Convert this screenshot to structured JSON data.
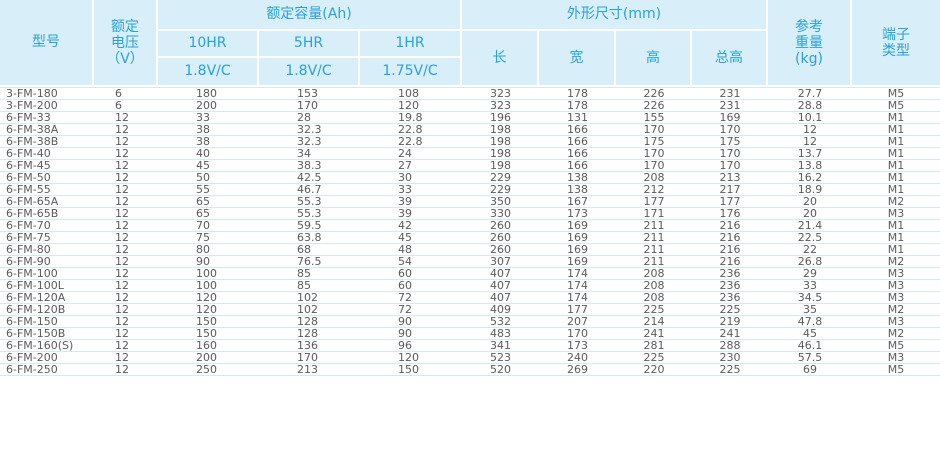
{
  "header": {
    "model": "型号",
    "voltage_l1": "额定",
    "voltage_l2": "电压",
    "voltage_l3": "（V）",
    "capacity": "额定容量(Ah)",
    "rate_10hr": "10HR",
    "rate_5hr": "5HR",
    "rate_1hr": "1HR",
    "v_10hr": "1.8V/C",
    "v_5hr": "1.8V/C",
    "v_1hr": "1.75V/C",
    "dimensions": "外形尺寸(mm)",
    "length": "长",
    "width": "宽",
    "height": "高",
    "total_height": "总高",
    "weight_l1": "参考",
    "weight_l2": "重量",
    "weight_l3": "(kg)",
    "terminal_l1": "端子",
    "terminal_l2": "类型"
  },
  "rows": [
    [
      "3-FM-180",
      "6",
      "180",
      "153",
      "108",
      "323",
      "178",
      "226",
      "231",
      "27.7",
      "M5"
    ],
    [
      "3-FM-200",
      "6",
      "200",
      "170",
      "120",
      "323",
      "178",
      "226",
      "231",
      "28.8",
      "M5"
    ],
    [
      "6-FM-33",
      "12",
      "33",
      "28",
      "19.8",
      "196",
      "131",
      "155",
      "169",
      "10.1",
      "M1"
    ],
    [
      "6-FM-38A",
      "12",
      "38",
      "32.3",
      "22.8",
      "198",
      "166",
      "170",
      "170",
      "12",
      "M1"
    ],
    [
      "6-FM-38B",
      "12",
      "38",
      "32.3",
      "22.8",
      "198",
      "166",
      "175",
      "175",
      "12",
      "M1"
    ],
    [
      "6-FM-40",
      "12",
      "40",
      "34",
      "24",
      "198",
      "166",
      "170",
      "170",
      "13.7",
      "M1"
    ],
    [
      "6-FM-45",
      "12",
      "45",
      "38.3",
      "27",
      "198",
      "166",
      "170",
      "170",
      "13.8",
      "M1"
    ],
    [
      "6-FM-50",
      "12",
      "50",
      "42.5",
      "30",
      "229",
      "138",
      "208",
      "213",
      "16.2",
      "M1"
    ],
    [
      "6-FM-55",
      "12",
      "55",
      "46.7",
      "33",
      "229",
      "138",
      "212",
      "217",
      "18.9",
      "M1"
    ],
    [
      "6-FM-65A",
      "12",
      "65",
      "55.3",
      "39",
      "350",
      "167",
      "177",
      "177",
      "20",
      "M2"
    ],
    [
      "6-FM-65B",
      "12",
      "65",
      "55.3",
      "39",
      "330",
      "173",
      "171",
      "176",
      "20",
      "M3"
    ],
    [
      "6-FM-70",
      "12",
      "70",
      "59.5",
      "42",
      "260",
      "169",
      "211",
      "216",
      "21.4",
      "M1"
    ],
    [
      "6-FM-75",
      "12",
      "75",
      "63.8",
      "45",
      "260",
      "169",
      "211",
      "216",
      "22.5",
      "M1"
    ],
    [
      "6-FM-80",
      "12",
      "80",
      "68",
      "48",
      "260",
      "169",
      "211",
      "216",
      "22",
      "M1"
    ],
    [
      "6-FM-90",
      "12",
      "90",
      "76.5",
      "54",
      "307",
      "169",
      "211",
      "216",
      "26.8",
      "M2"
    ],
    [
      "6-FM-100",
      "12",
      "100",
      "85",
      "60",
      "407",
      "174",
      "208",
      "236",
      "29",
      "M3"
    ],
    [
      "6-FM-100L",
      "12",
      "100",
      "85",
      "60",
      "407",
      "174",
      "208",
      "236",
      "33",
      "M3"
    ],
    [
      "6-FM-120A",
      "12",
      "120",
      "102",
      "72",
      "407",
      "174",
      "208",
      "236",
      "34.5",
      "M3"
    ],
    [
      "6-FM-120B",
      "12",
      "120",
      "102",
      "72",
      "409",
      "177",
      "225",
      "225",
      "35",
      "M2"
    ],
    [
      "6-FM-150",
      "12",
      "150",
      "128",
      "90",
      "532",
      "207",
      "214",
      "219",
      "47.8",
      "M3"
    ],
    [
      "6-FM-150B",
      "12",
      "150",
      "128",
      "90",
      "483",
      "170",
      "241",
      "241",
      "45",
      "M2"
    ],
    [
      "6-FM-160(S)",
      "12",
      "160",
      "136",
      "96",
      "341",
      "173",
      "281",
      "288",
      "46.1",
      "M5"
    ],
    [
      "6-FM-200",
      "12",
      "200",
      "170",
      "120",
      "523",
      "240",
      "225",
      "230",
      "57.5",
      "M3"
    ],
    [
      "6-FM-250",
      "12",
      "250",
      "213",
      "150",
      "520",
      "269",
      "220",
      "225",
      "69",
      "M5"
    ]
  ]
}
